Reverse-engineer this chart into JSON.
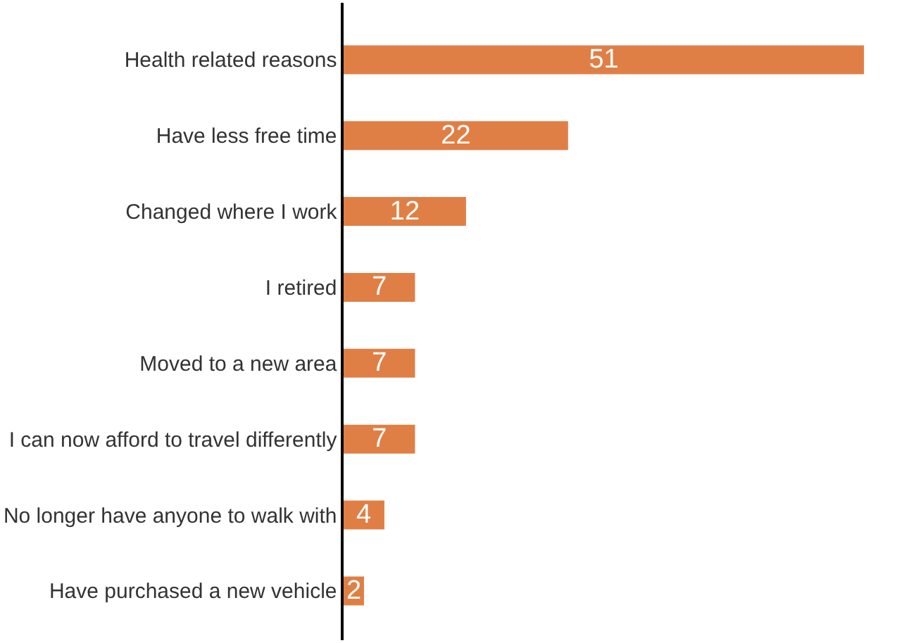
{
  "chart_data": {
    "type": "bar",
    "orientation": "horizontal",
    "categories": [
      "Health related reasons",
      "Have less free time",
      "Changed where I work",
      "I retired",
      "Moved to a new area",
      "I can now afford to travel differently",
      "No longer have anyone to walk with",
      "Have purchased a new vehicle"
    ],
    "values": [
      51,
      22,
      12,
      7,
      7,
      7,
      4,
      2
    ],
    "color": "#e07f45",
    "data_labels": true
  }
}
